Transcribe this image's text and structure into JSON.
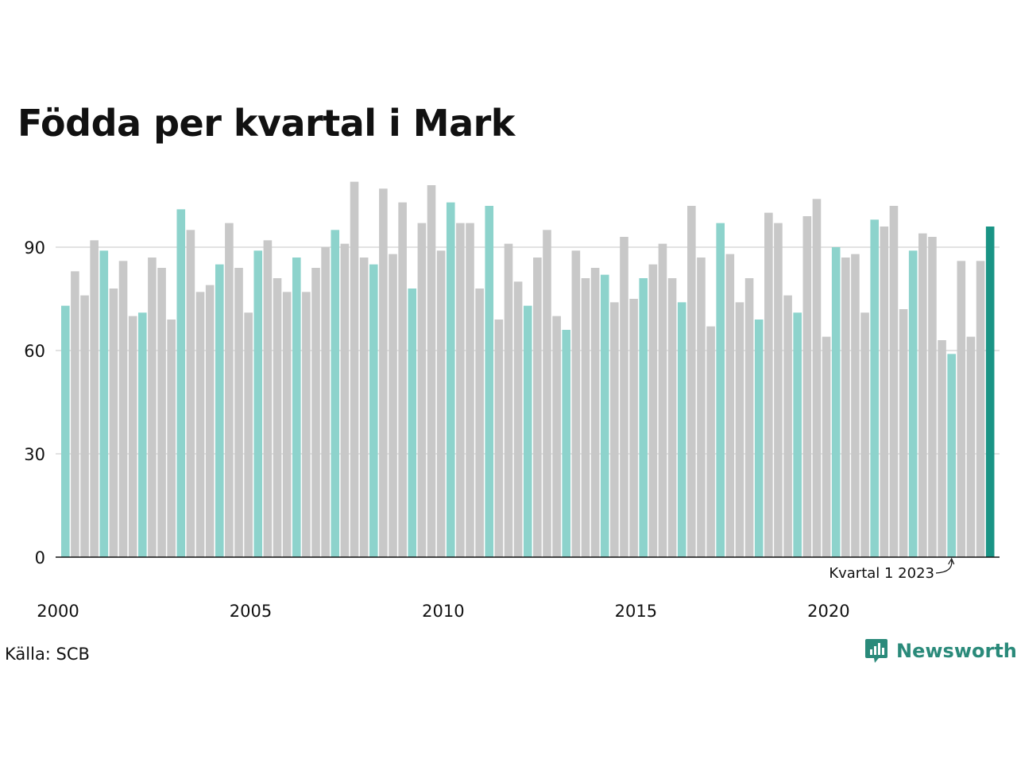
{
  "title": "Födda per kvartal i Mark",
  "source": "Källa: SCB",
  "brand": {
    "name": "Newsworthy",
    "icon": "bar-chart-bubble-icon"
  },
  "colors": {
    "q1": "#8dd3cc",
    "other": "#c8c8c8",
    "latest": "#1a9485",
    "grid": "#e2e2e2",
    "axis": "#111111",
    "brand": "#2a8a7a"
  },
  "annotation": {
    "text": "Kvartal 1 2023",
    "target_index": 92
  },
  "chart_data": {
    "type": "bar",
    "title": "Födda per kvartal i Mark",
    "xlabel": "",
    "ylabel": "",
    "ylim": [
      0,
      110
    ],
    "yticks": [
      0,
      30,
      60,
      90
    ],
    "grid": true,
    "x_tick_labels": [
      "2000",
      "2005",
      "2010",
      "2015",
      "2020"
    ],
    "start_period": "2000 Q1",
    "end_period": "2024 Q1",
    "values": [
      73,
      83,
      76,
      92,
      89,
      78,
      86,
      70,
      71,
      87,
      84,
      69,
      101,
      95,
      77,
      79,
      85,
      97,
      84,
      71,
      89,
      92,
      81,
      77,
      87,
      77,
      84,
      90,
      95,
      91,
      109,
      87,
      85,
      107,
      88,
      103,
      78,
      97,
      108,
      89,
      103,
      97,
      97,
      78,
      102,
      69,
      91,
      80,
      73,
      87,
      95,
      70,
      66,
      89,
      81,
      84,
      82,
      74,
      93,
      75,
      81,
      85,
      91,
      81,
      74,
      102,
      87,
      67,
      97,
      88,
      74,
      81,
      69,
      100,
      97,
      76,
      71,
      99,
      104,
      64,
      90,
      87,
      88,
      71,
      98,
      96,
      102,
      72,
      89,
      94,
      93,
      63,
      59,
      86,
      64,
      86,
      96
    ]
  }
}
